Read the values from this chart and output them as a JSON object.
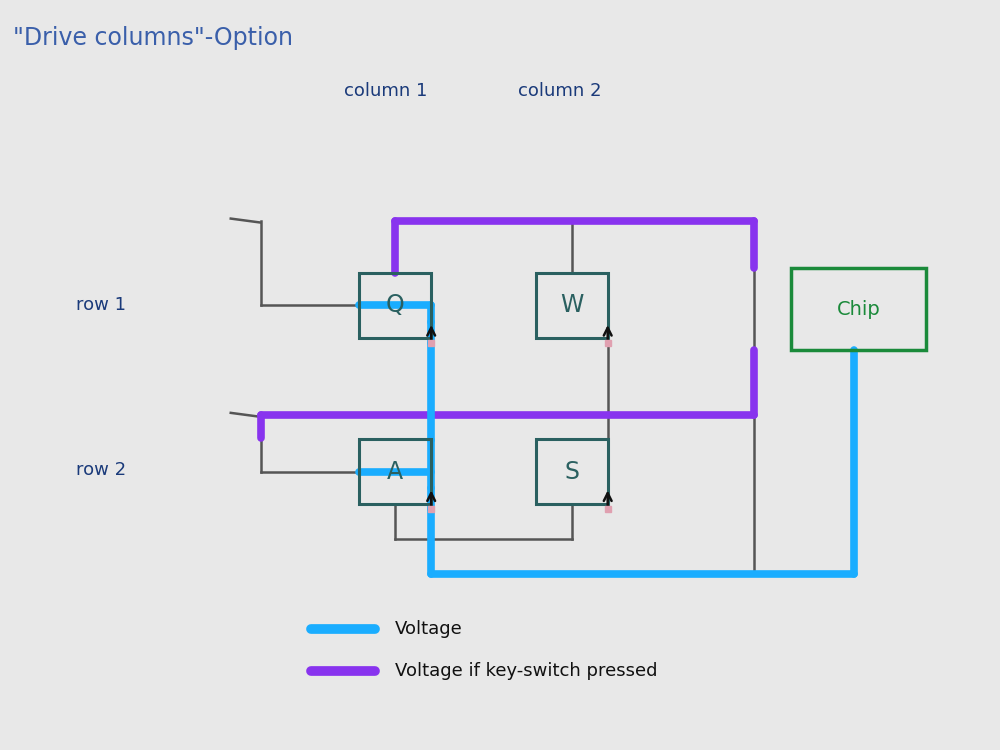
{
  "title": "\"Drive columns\"-Option",
  "title_color": "#3a5faa",
  "title_fontsize": 17,
  "bg_color": "#e8e8e8",
  "handwritten_color": "#1a3a7a",
  "circuit_color": "#2a6060",
  "chip_color": "#1a8a3a",
  "blue_wire": "#1aadff",
  "purple_wire": "#8833ee",
  "gray_wire": "#555555",
  "col1_label": "column 1",
  "col2_label": "column 2",
  "row1_label": "row 1",
  "row2_label": "row 2",
  "legend_voltage": "Voltage",
  "legend_pressed": "Voltage if key-switch pressed"
}
